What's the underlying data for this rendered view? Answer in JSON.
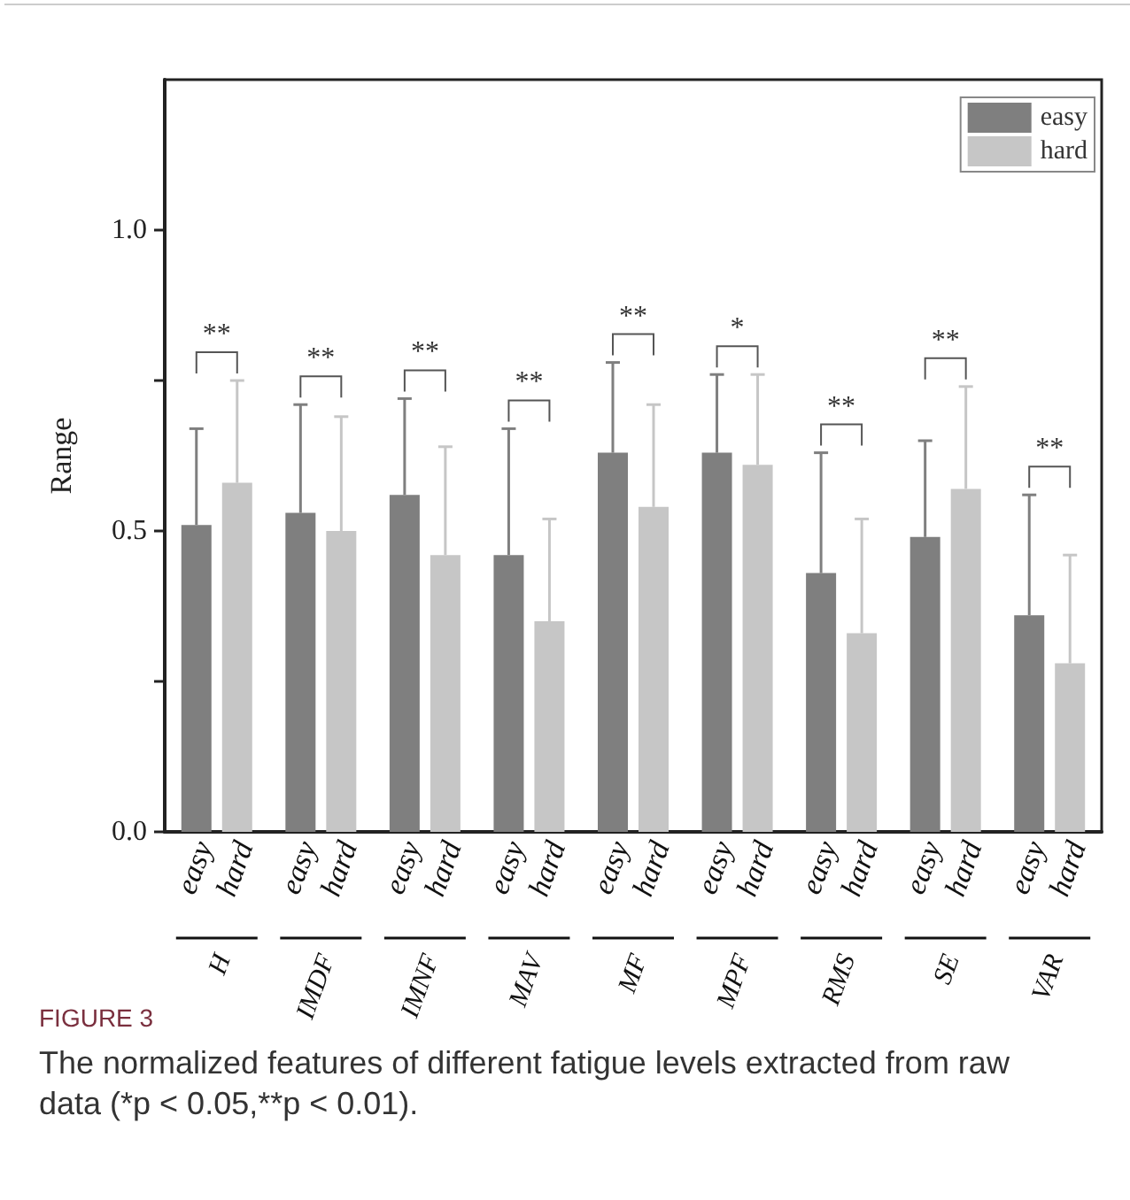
{
  "chart_data": {
    "type": "bar",
    "ylabel": "Range",
    "categories": [
      "H",
      "IMDF",
      "IMNF",
      "MAV",
      "MF",
      "MPF",
      "RMS",
      "SE",
      "VAR"
    ],
    "series": [
      {
        "name": "easy",
        "color": "#7f7f7f",
        "values": [
          0.51,
          0.53,
          0.56,
          0.46,
          0.63,
          0.63,
          0.43,
          0.49,
          0.36
        ],
        "errors": [
          [
            0.51,
            0.67
          ],
          [
            0.53,
            0.71
          ],
          [
            0.56,
            0.72
          ],
          [
            0.46,
            0.67
          ],
          [
            0.63,
            0.78
          ],
          [
            0.63,
            0.76
          ],
          [
            0.43,
            0.63
          ],
          [
            0.49,
            0.65
          ],
          [
            0.36,
            0.56
          ]
        ]
      },
      {
        "name": "hard",
        "color": "#c6c6c6",
        "values": [
          0.58,
          0.5,
          0.46,
          0.35,
          0.54,
          0.61,
          0.33,
          0.57,
          0.28
        ],
        "errors": [
          [
            0.58,
            0.75
          ],
          [
            0.5,
            0.69
          ],
          [
            0.46,
            0.64
          ],
          [
            0.35,
            0.52
          ],
          [
            0.54,
            0.71
          ],
          [
            0.61,
            0.76
          ],
          [
            0.33,
            0.52
          ],
          [
            0.57,
            0.74
          ],
          [
            0.28,
            0.46
          ]
        ]
      }
    ],
    "ylim": [
      0,
      1.25
    ],
    "yticks": [
      {
        "value": 0,
        "label": "0.0"
      },
      {
        "value": 0.25,
        "label": null
      },
      {
        "value": 0.5,
        "label": "0.5"
      },
      {
        "value": 0.75,
        "label": null
      },
      {
        "value": 1,
        "label": "1.0"
      }
    ],
    "legend": "top right",
    "annotations": [
      "**",
      "**",
      "**",
      "**",
      "**",
      "*",
      "**",
      "**",
      "**",
      "FIGURE 3",
      "The normalized features of different fatigue levels extracted from raw data (*p < 0.05,**p < 0.01)."
    ]
  }
}
